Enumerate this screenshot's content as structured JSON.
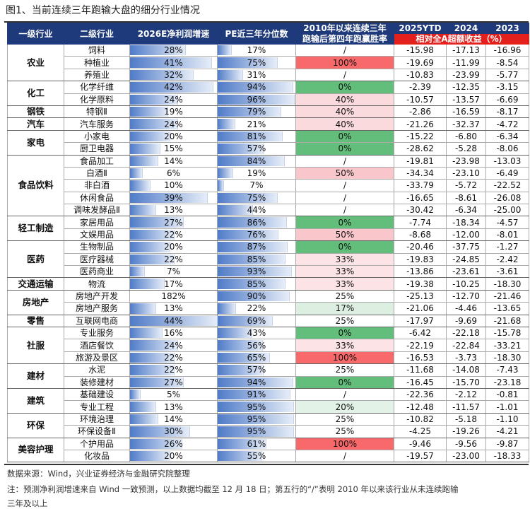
{
  "title": "图1、当前连续三年跑输大盘的细分行业情况",
  "headers": {
    "c1": "一级行业",
    "c2": "二级行业",
    "c3": "2026E净利润增速",
    "c4": "PE近三年分位数",
    "c5a": "2010年以来连续三年",
    "c5b": "跑输后第四年跑赢胜率",
    "c6": "2025YTD",
    "c7": "2024",
    "c8": "2023",
    "sub": "相对全A超额收益（%）"
  },
  "colors": {
    "header": "#1f3a7a",
    "subheader": "#e3201c",
    "win_100": "#f8696b",
    "win_0": "#63be7b"
  },
  "groups": [
    {
      "name": "农业",
      "rows": [
        [
          "饲料",
          "28%",
          "17%",
          "/",
          "-15.98",
          "-17.13",
          "-16.96"
        ],
        [
          "种植业",
          "41%",
          "75%",
          "100%",
          "-19.69",
          "-11.99",
          "-8.54"
        ],
        [
          "养殖业",
          "32%",
          "31%",
          "/",
          "-10.83",
          "-23.99",
          "-5.77"
        ]
      ]
    },
    {
      "name": "化工",
      "rows": [
        [
          "化学纤维",
          "42%",
          "94%",
          "0%",
          "-2.39",
          "-12.35",
          "-3.15"
        ],
        [
          "化学原料",
          "24%",
          "96%",
          "40%",
          "-10.57",
          "-13.57",
          "-6.69"
        ]
      ]
    },
    {
      "name": "钢铁",
      "rows": [
        [
          "特钢Ⅱ",
          "19%",
          "79%",
          "40%",
          "-2.86",
          "-16.59",
          "-8.17"
        ]
      ]
    },
    {
      "name": "汽车",
      "rows": [
        [
          "汽车服务",
          "24%",
          "21%",
          "40%",
          "-21.26",
          "-32.37",
          "-4.72"
        ]
      ]
    },
    {
      "name": "家电",
      "rows": [
        [
          "小家电",
          "20%",
          "81%",
          "0%",
          "-15.22",
          "-6.80",
          "-6.34"
        ],
        [
          "厨卫电器",
          "15%",
          "57%",
          "0%",
          "-28.62",
          "-5.28",
          "-8.06"
        ]
      ]
    },
    {
      "name": "食品饮料",
      "rows": [
        [
          "食品加工",
          "14%",
          "84%",
          "/",
          "-19.81",
          "-23.98",
          "-13.03"
        ],
        [
          "白酒Ⅱ",
          "6%",
          "19%",
          "50%",
          "-34.34",
          "-23.10",
          "-6.49"
        ],
        [
          "非白酒",
          "10%",
          "7%",
          "/",
          "-33.79",
          "-5.72",
          "-22.52"
        ],
        [
          "休闲食品",
          "39%",
          "75%",
          "/",
          "-16.65",
          "-8.61",
          "-26.08"
        ],
        [
          "调味发酵品Ⅱ",
          "13%",
          "44%",
          "/",
          "-30.42",
          "-6.34",
          "-25.00"
        ]
      ]
    },
    {
      "name": "轻工制造",
      "rows": [
        [
          "家居用品",
          "27%",
          "86%",
          "0%",
          "-7.74",
          "-18.34",
          "-4.57"
        ],
        [
          "文娱用品",
          "22%",
          "76%",
          "50%",
          "-8.68",
          "-12.00",
          "-8.01"
        ]
      ]
    },
    {
      "name": "医药",
      "rows": [
        [
          "生物制品",
          "20%",
          "87%",
          "0%",
          "-20.46",
          "-37.75",
          "-1.27"
        ],
        [
          "医疗器械",
          "22%",
          "85%",
          "33%",
          "-19.83",
          "-24.85",
          "-2.42"
        ],
        [
          "医药商业",
          "7%",
          "93%",
          "33%",
          "-13.86",
          "-23.61",
          "-3.61"
        ]
      ]
    },
    {
      "name": "交通运输",
      "rows": [
        [
          "物流",
          "17%",
          "85%",
          "33%",
          "-19.38",
          "-10.25",
          "-18.30"
        ]
      ]
    },
    {
      "name": "房地产",
      "rows": [
        [
          "房地产开发",
          "182%",
          "90%",
          "25%",
          "-25.13",
          "-12.70",
          "-21.46"
        ],
        [
          "房地产服务",
          "13%",
          "22%",
          "17%",
          "-21.06",
          "-4.46",
          "-13.65"
        ]
      ]
    },
    {
      "name": "零售",
      "rows": [
        [
          "互联网电商",
          "44%",
          "69%",
          "25%",
          "-17.97",
          "-9.69",
          "-21.68"
        ]
      ]
    },
    {
      "name": "社服",
      "rows": [
        [
          "专业服务",
          "16%",
          "43%",
          "0%",
          "-6.42",
          "-22.18",
          "-15.78"
        ],
        [
          "酒店餐饮",
          "24%",
          "56%",
          "33%",
          "-22.19",
          "-22.84",
          "-33.21"
        ],
        [
          "旅游及景区",
          "22%",
          "65%",
          "100%",
          "-16.53",
          "-3.73",
          "-18.30"
        ]
      ]
    },
    {
      "name": "建材",
      "rows": [
        [
          "水泥",
          "22%",
          "57%",
          "25%",
          "-11.68",
          "-14.08",
          "-7.43"
        ],
        [
          "装修建材",
          "27%",
          "94%",
          "0%",
          "-16.45",
          "-15.70",
          "-23.18"
        ]
      ]
    },
    {
      "name": "建筑",
      "rows": [
        [
          "基础建设",
          "5%",
          "91%",
          "/",
          "-22.36",
          "-2.12",
          "-0.81"
        ],
        [
          "专业工程",
          "13%",
          "95%",
          "20%",
          "-12.48",
          "-11.57",
          "-1.01"
        ]
      ]
    },
    {
      "name": "环保",
      "rows": [
        [
          "环境治理",
          "14%",
          "95%",
          "25%",
          "-10.82",
          "-5.18",
          "-1.10"
        ],
        [
          "环保设备Ⅱ",
          "30%",
          "95%",
          "25%",
          "-4.25",
          "-19.26",
          "-4.21"
        ]
      ]
    },
    {
      "name": "美容护理",
      "rows": [
        [
          "个护用品",
          "26%",
          "61%",
          "100%",
          "-9.46",
          "-9.56",
          "-9.87"
        ],
        [
          "化妆品",
          "20%",
          "55%",
          "/",
          "-19.57",
          "-23.00",
          "-18.33"
        ]
      ]
    }
  ],
  "footer": {
    "source": "数据来源：Wind，兴业证券经济与金融研究院整理",
    "note1": "注：预测净利润增速来自 Wind 一致预测，以上数据均截至 12 月 18 日；第五行的“/”表明 2010 年以来该行业从未连续跑输",
    "note2": "三年及以上"
  }
}
